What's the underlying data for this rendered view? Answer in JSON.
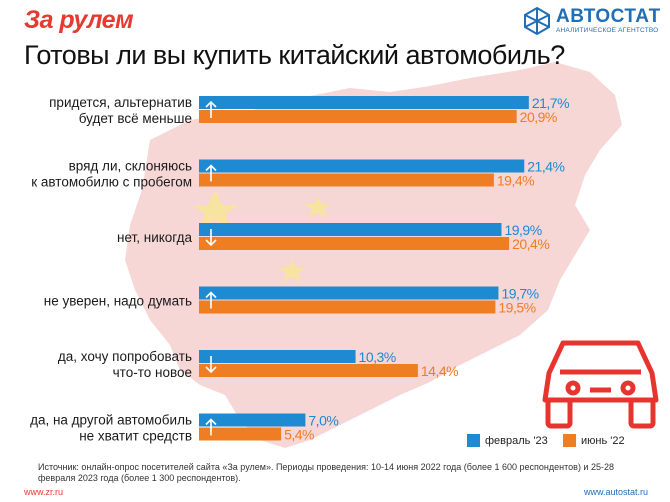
{
  "header": {
    "brand": "За рулем",
    "logo_name": "АВТОСТАТ",
    "logo_sub": "АНАЛИТИЧЕСКОЕ АГЕНТСТВО",
    "title": "Готовы ли вы купить китайский автомобиль?"
  },
  "chart_data": {
    "type": "bar",
    "orientation": "horizontal",
    "title": "Готовы ли вы купить китайский автомобиль?",
    "xlabel": "",
    "ylabel": "",
    "xlim": [
      0,
      25
    ],
    "categories": [
      [
        "придется, альтернатив",
        "будет всё меньше"
      ],
      [
        "вряд ли, склоняюсь",
        "к автомобилю с пробегом"
      ],
      [
        "нет, никогда"
      ],
      [
        "не уверен, надо думать"
      ],
      [
        "да, хочу попробовать",
        "что-то новое"
      ],
      [
        "да, на другой автомобиль",
        "не хватит средств"
      ]
    ],
    "series": [
      {
        "name": "февраль '23",
        "color": "#1e8ad2",
        "values": [
          21.7,
          21.4,
          19.9,
          19.7,
          10.3,
          7.0
        ],
        "labels": [
          "21,7%",
          "21,4%",
          "19,9%",
          "19,7%",
          "10,3%",
          "7,0%"
        ]
      },
      {
        "name": "июнь '22",
        "color": "#ef7d22",
        "values": [
          20.9,
          19.4,
          20.4,
          19.5,
          14.4,
          5.4
        ],
        "labels": [
          "20,9%",
          "19,4%",
          "20,4%",
          "19,5%",
          "14,4%",
          "5,4%"
        ]
      }
    ],
    "trend_arrows": [
      "up",
      "up",
      "down",
      "up",
      "down",
      "up"
    ],
    "legend": [
      "февраль '23",
      "июнь '22"
    ],
    "legend_position": "bottom-right"
  },
  "footer": {
    "source": "Источник: онлайн-опрос посетителей сайта «За рулем». Периоды проведения: 10-14 июня 2022 года (более 1 600 респондентов) и 25-28 февраля 2023 года (более 1 300 респондентов).",
    "url_left": "www.zr.ru",
    "url_right": "www.autostat.ru"
  },
  "colors": {
    "accent_red": "#e53a2f",
    "brand_blue": "#1f6fb8",
    "map_red": "#f0b4b4",
    "star_yellow": "#f6e59a"
  }
}
